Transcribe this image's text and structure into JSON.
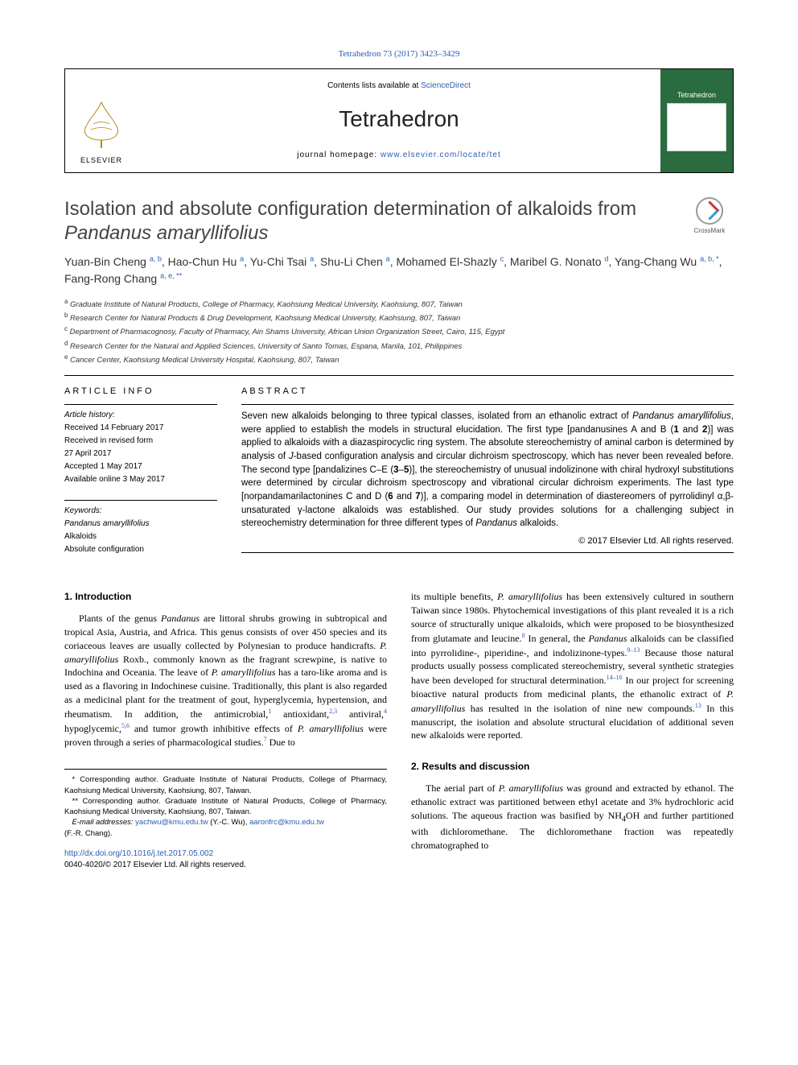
{
  "top_citation": "Tetrahedron 73 (2017) 3423–3429",
  "header": {
    "contents_prefix": "Contents lists available at ",
    "contents_link": "ScienceDirect",
    "journal_title": "Tetrahedron",
    "homepage_prefix": "journal homepage: ",
    "homepage_link": "www.elsevier.com/locate/tet",
    "elsevier_label": "ELSEVIER",
    "cover_label": "Tetrahedron"
  },
  "crossmark_label": "CrossMark",
  "title_main": "Isolation and absolute configuration determination of alkaloids from ",
  "title_italic": "Pandanus amaryllifolius",
  "authors_html": "Yuan-Bin Cheng <sup>a, b</sup>, Hao-Chun Hu <sup>a</sup>, Yu-Chi Tsai <sup>a</sup>, Shu-Li Chen <sup>a</sup>, Mohamed El-Shazly <sup>c</sup>, Maribel G. Nonato <sup>d</sup>, Yang-Chang Wu <sup>a, b, *</sup>, Fang-Rong Chang <sup>a, e, **</sup>",
  "affiliations": [
    "a Graduate Institute of Natural Products, College of Pharmacy, Kaohsiung Medical University, Kaohsiung, 807, Taiwan",
    "b Research Center for Natural Products & Drug Development, Kaohsiung Medical University, Kaohsiung, 807, Taiwan",
    "c Department of Pharmacognosy, Faculty of Pharmacy, Ain Shams University, African Union Organization Street, Cairo, 115, Egypt",
    "d Research Center for the Natural and Applied Sciences, University of Santo Tomas, Espana, Manila, 101, Philippines",
    "e Cancer Center, Kaohsiung Medical University Hospital, Kaohsiung, 807, Taiwan"
  ],
  "article_info_label": "ARTICLE INFO",
  "abstract_label": "ABSTRACT",
  "history": {
    "label": "Article history:",
    "lines": [
      "Received 14 February 2017",
      "Received in revised form",
      "27 April 2017",
      "Accepted 1 May 2017",
      "Available online 3 May 2017"
    ]
  },
  "keywords": {
    "label": "Keywords:",
    "items": [
      "Pandanus amaryllifolius",
      "Alkaloids",
      "Absolute configuration"
    ]
  },
  "abstract_html": "Seven new alkaloids belonging to three typical classes, isolated from an ethanolic extract of <em>Pandanus amaryllifolius</em>, were applied to establish the models in structural elucidation. The first type [pandanusines A and B (<strong>1</strong> and <strong>2</strong>)] was applied to alkaloids with a diazaspirocyclic ring system. The absolute stereochemistry of aminal carbon is determined by analysis of <em>J</em>-based configuration analysis and circular dichroism spectroscopy, which has never been revealed before. The second type [pandalizines C–E (<strong>3</strong>–<strong>5</strong>)], the stereochemistry of unusual indolizinone with chiral hydroxyl substitutions were determined by circular dichroism spectroscopy and vibrational circular dichroism experiments. The last type [norpandamarilactonines C and D (<strong>6</strong> and <strong>7</strong>)], a comparing model in determination of diastereomers of pyrrolidinyl α,β-unsaturated γ-lactone alkaloids was established. Our study provides solutions for a challenging subject in stereochemistry determination for three different types of <em>Pandanus</em> alkaloids.",
  "copyright": "© 2017 Elsevier Ltd. All rights reserved.",
  "sections": {
    "intro_heading": "1. Introduction",
    "intro_col1_html": "Plants of the genus <em>Pandanus</em> are littoral shrubs growing in subtropical and tropical Asia, Austria, and Africa. This genus consists of over 450 species and its coriaceous leaves are usually collected by Polynesian to produce handicrafts. <em>P. amaryllifolius</em> Roxb., commonly known as the fragrant screwpine, is native to Indochina and Oceania. The leave of <em>P. amaryllifolius</em> has a taro-like aroma and is used as a flavoring in Indochinese cuisine. Traditionally, this plant is also regarded as a medicinal plant for the treatment of gout, hyperglycemia, hypertension, and rheumatism. In addition, the antimicrobial,<sup>1</sup> antioxidant,<sup>2,3</sup> antiviral,<sup>4</sup> hypoglycemic,<sup>5,6</sup> and tumor growth inhibitive effects of <em>P. amaryllifolius</em> were proven through a series of pharmacological studies.<sup>7</sup> Due to",
    "intro_col2_html": "its multiple benefits, <em>P. amaryllifolius</em> has been extensively cultured in southern Taiwan since 1980s. Phytochemical investigations of this plant revealed it is a rich source of structurally unique alkaloids, which were proposed to be biosynthesized from glutamate and leucine.<sup>8</sup> In general, the <em>Pandanus</em> alkaloids can be classified into pyrrolidine-, piperidine-, and indolizinone-types.<sup>9–13</sup> Because those natural products usually possess complicated stereochemistry, several synthetic strategies have been developed for structural determination.<sup>14–16</sup> In our project for screening bioactive natural products from medicinal plants, the ethanolic extract of <em>P. amaryllifolius</em> has resulted in the isolation of nine new compounds.<sup>13</sup> In this manuscript, the isolation and absolute structural elucidation of additional seven new alkaloids were reported.",
    "results_heading": "2. Results and discussion",
    "results_col2_html": "The aerial part of <em>P. amaryllifolius</em> was ground and extracted by ethanol. The ethanolic extract was partitioned between ethyl acetate and 3% hydrochloric acid solutions. The aqueous fraction was basified by NH<sub>4</sub>OH and further partitioned with dichloromethane. The dichloromethane fraction was repeatedly chromatographed to"
  },
  "footnotes": {
    "star1": "* Corresponding author. Graduate Institute of Natural Products, College of Pharmacy, Kaohsiung Medical University, Kaohsiung, 807, Taiwan.",
    "star2": "** Corresponding author. Graduate Institute of Natural Products, College of Pharmacy, Kaohsiung Medical University, Kaohsiung, 807, Taiwan.",
    "email_label": "E-mail addresses:",
    "email1": "yachwu@kmu.edu.tw",
    "email1_who": " (Y.-C. Wu), ",
    "email2": "aaronfrc@kmu.edu.tw",
    "email2_who": "(F.-R. Chang)."
  },
  "doi": {
    "url": "http://dx.doi.org/10.1016/j.tet.2017.05.002",
    "issn_line": "0040-4020/© 2017 Elsevier Ltd. All rights reserved."
  },
  "colors": {
    "link": "#2a5db0",
    "cover_bg": "#2a6b3f",
    "heading": "#444444"
  }
}
